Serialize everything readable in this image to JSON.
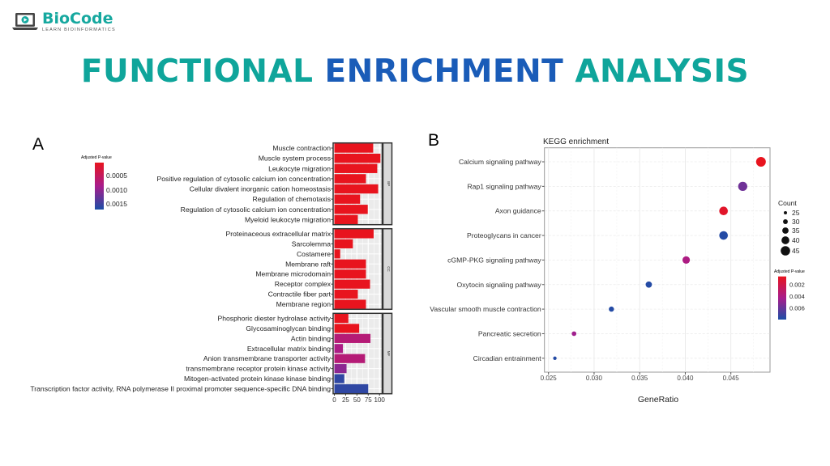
{
  "logo": {
    "brand": "BioCode",
    "tagline": "LEARN BIOINFORMATICS",
    "icon": "laptop-play-icon"
  },
  "title": {
    "part1": "FUNCTIONAL",
    "part2": "ENRICHMENT",
    "part3": "ANALYSIS"
  },
  "colors": {
    "teal": "#0fa59b",
    "blue": "#1a5cb8",
    "low_p": "#e8141e",
    "high_p": "#1c4ea6",
    "mid_p": "#a81d8c"
  },
  "chart_data": [
    {
      "panel_label": "A",
      "type": "bar",
      "orientation": "horizontal",
      "xlim": [
        0,
        105
      ],
      "xticks": [
        "0",
        "25",
        "50",
        "75",
        "100"
      ],
      "legend": {
        "title": "Adjusted P-value",
        "ticks": [
          "0.0005",
          "0.0010",
          "0.0015"
        ],
        "range": [
          0.0002,
          0.0017
        ]
      },
      "facets": [
        {
          "name": "BP",
          "categories": [
            "Muscle contraction",
            "Muscle system process",
            "Leukocyte migration",
            "Positive regulation of cytosolic calcium ion concentration",
            "Cellular divalent inorganic cation homeostasis",
            "Regulation of chemotaxis",
            "Regulation of cytosolic calcium ion concentration",
            "Myeloid leukocyte migration"
          ],
          "values": [
            86,
            102,
            95,
            70,
            97,
            57,
            74,
            52
          ],
          "padj": [
            0.0002,
            0.0002,
            0.0002,
            0.0002,
            0.0002,
            0.0002,
            0.0002,
            0.0002
          ]
        },
        {
          "name": "CC",
          "categories": [
            "Proteinaceous extracellular matrix",
            "Sarcolemma",
            "Costamere",
            "Membrane raft",
            "Membrane microdomain",
            "Receptor complex",
            "Contractile fiber part",
            "Membrane region"
          ],
          "values": [
            87,
            41,
            13,
            70,
            70,
            79,
            52,
            70
          ],
          "padj": [
            0.0002,
            0.0002,
            0.0002,
            0.0002,
            0.0002,
            0.0002,
            0.0002,
            0.0002
          ]
        },
        {
          "name": "MF",
          "categories": [
            "Phosphoric diester hydrolase activity",
            "Glycosaminoglycan binding",
            "Actin binding",
            "Extracellular matrix binding",
            "Anion transmembrane transporter activity",
            "transmembrane receptor protein kinase activity",
            "Mitogen-activated protein kinase kinase binding",
            "Transcription factor activity, RNA polymerase II proximal promoter sequence-specific DNA binding"
          ],
          "values": [
            31,
            55,
            80,
            19,
            68,
            27,
            22,
            75
          ],
          "padj": [
            0.0002,
            0.0002,
            0.0008,
            0.0009,
            0.0008,
            0.0011,
            0.0016,
            0.0016
          ]
        }
      ]
    },
    {
      "panel_label": "B",
      "type": "scatter",
      "title": "KEGG enrichment",
      "xlabel": "GeneRatio",
      "xlim": [
        0.0245,
        0.0494
      ],
      "xticks": [
        "0.025",
        "0.030",
        "0.035",
        "0.040",
        "0.045"
      ],
      "grid": true,
      "categories": [
        "Calcium signaling pathway",
        "Rap1 signaling pathway",
        "Axon guidance",
        "Proteoglycans in cancer",
        "cGMP-PKG signaling pathway",
        "Oxytocin signaling pathway",
        "Vascular smooth muscle contraction",
        "Pancreatic secretion",
        "Circadian entrainment"
      ],
      "x": [
        0.0483,
        0.0463,
        0.0442,
        0.0442,
        0.0401,
        0.036,
        0.0319,
        0.0278,
        0.0257
      ],
      "count": [
        45,
        43,
        41,
        41,
        37,
        33,
        29,
        27,
        23
      ],
      "padj": [
        0.0006,
        0.0058,
        0.001,
        0.0078,
        0.004,
        0.0078,
        0.0078,
        0.0045,
        0.0078
      ],
      "size_legend": {
        "title": "Count",
        "values": [
          "25",
          "30",
          "35",
          "40",
          "45"
        ]
      },
      "color_legend": {
        "title": "Adjusted P-value",
        "ticks": [
          "0.002",
          "0.004",
          "0.006"
        ],
        "range": [
          0.0006,
          0.008
        ]
      },
      "legend_position": "right"
    }
  ]
}
